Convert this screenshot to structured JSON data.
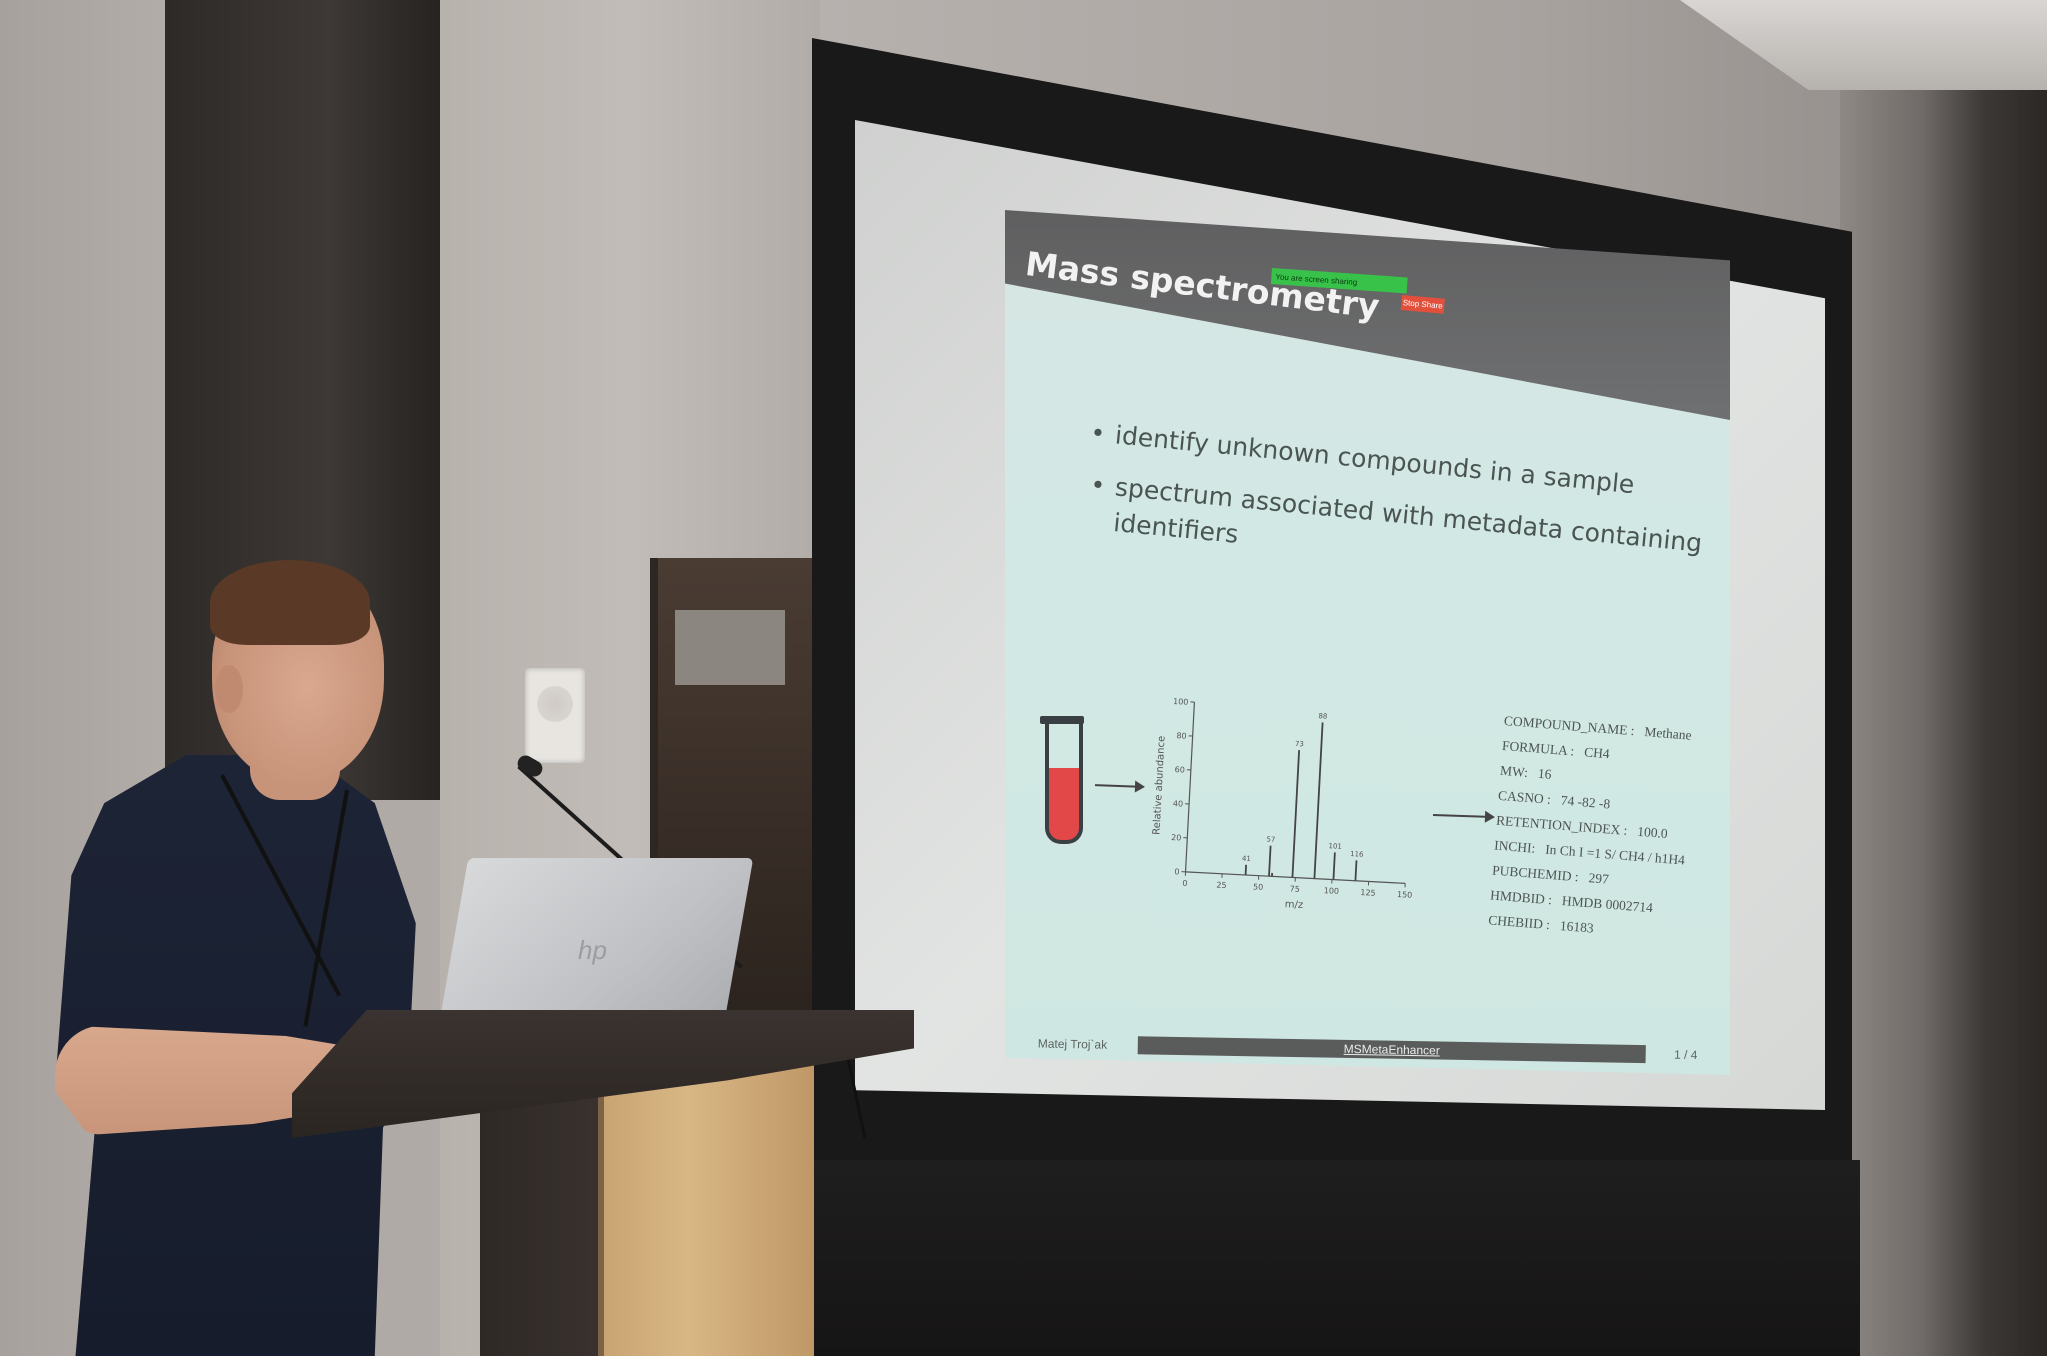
{
  "slide": {
    "title": "Mass spectrometry",
    "share_bar_text": "You are screen sharing",
    "stop_share_label": "Stop Share",
    "bullets": [
      "identify unknown compounds in a sample",
      "spectrum associated with metadata containing",
      "identifiers"
    ],
    "metadata": [
      {
        "key": "COMPOUND_NAME :",
        "value": "Methane"
      },
      {
        "key": "FORMULA :",
        "value": "CH4"
      },
      {
        "key": "MW:",
        "value": "16"
      },
      {
        "key": "CASNO :",
        "value": "74 -82 -8"
      },
      {
        "key": "RETENTION_INDEX :",
        "value": "100.0"
      },
      {
        "key": "INCHI:",
        "value": "In Ch I =1 S/ CH4 / h1H4"
      },
      {
        "key": "PUBCHEMID :",
        "value": "297"
      },
      {
        "key": "HMDBID :",
        "value": "HMDB 0002714"
      },
      {
        "key": "CHEBIID :",
        "value": "16183"
      }
    ],
    "footer": {
      "author": "Matej Troj`ak",
      "project": "MSMetaEnhancer",
      "page": "1 / 4"
    }
  },
  "chart_data": {
    "type": "bar",
    "xlabel": "m/z",
    "ylabel": "Relative abundance",
    "xlim": [
      0,
      150
    ],
    "ylim": [
      0,
      100
    ],
    "x_ticks": [
      "0",
      "25",
      "50",
      "75",
      "100",
      "125",
      "150"
    ],
    "y_ticks": [
      "0",
      "20",
      "40",
      "60",
      "80",
      "100"
    ],
    "x": [
      41,
      57,
      59,
      73,
      88,
      101,
      116
    ],
    "values": [
      6,
      18,
      2,
      75,
      92,
      16,
      12
    ],
    "peak_labels": [
      "41",
      "57",
      "",
      "73",
      "88",
      "101",
      "116"
    ]
  },
  "colors": {
    "slide_background": "#d2e8e4",
    "header": "#626364",
    "share_bar": "#38c24a",
    "stop_share": "#e2503c",
    "tube_liquid": "#e24848"
  },
  "laptop_logo": "hp"
}
